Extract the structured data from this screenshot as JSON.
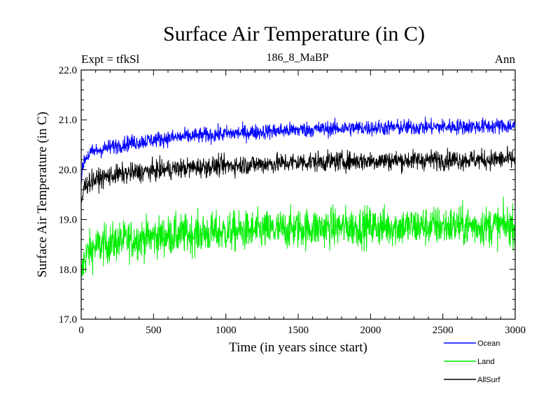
{
  "chart_data": {
    "type": "line",
    "title": "Surface Air Temperature (in C)",
    "subtitle_left": "Expt = tfkSl",
    "subtitle_center": "186_8_MaBP",
    "subtitle_right": "Ann",
    "xlabel": "Time (in years since start)",
    "ylabel": "Surface Air Temperature (in C)",
    "xlim": [
      0,
      3000
    ],
    "ylim": [
      17.0,
      22.0
    ],
    "x_ticks": [
      0,
      500,
      1000,
      1500,
      2000,
      2500,
      3000
    ],
    "x_tick_labels": [
      "0",
      "500",
      "1000",
      "1500",
      "2000",
      "2500",
      "3000"
    ],
    "y_ticks": [
      17.0,
      18.0,
      19.0,
      20.0,
      21.0,
      22.0
    ],
    "y_tick_labels": [
      "17.0",
      "18.0",
      "19.0",
      "20.0",
      "21.0",
      "22.0"
    ],
    "grid": false,
    "legend_position": "bottom-right",
    "series": [
      {
        "name": "Ocean",
        "color": "#0000ff",
        "x": [
          0,
          20,
          50,
          100,
          200,
          300,
          500,
          700,
          1000,
          1300,
          1500,
          1800,
          2000,
          2300,
          2500,
          2800,
          3000
        ],
        "values": [
          19.8,
          20.2,
          20.3,
          20.38,
          20.45,
          20.52,
          20.6,
          20.66,
          20.72,
          20.77,
          20.8,
          20.83,
          20.84,
          20.85,
          20.86,
          20.87,
          20.88
        ],
        "noise": 0.08
      },
      {
        "name": "Land",
        "color": "#00ee00",
        "x": [
          0,
          20,
          50,
          100,
          200,
          300,
          500,
          700,
          1000,
          1300,
          1500,
          1800,
          2000,
          2300,
          2500,
          2800,
          3000
        ],
        "values": [
          17.8,
          18.2,
          18.35,
          18.45,
          18.52,
          18.58,
          18.65,
          18.7,
          18.75,
          18.78,
          18.82,
          18.85,
          18.86,
          18.86,
          18.87,
          18.87,
          18.88
        ],
        "noise": 0.2
      },
      {
        "name": "AllSurf",
        "color": "#000000",
        "x": [
          0,
          20,
          50,
          100,
          200,
          300,
          500,
          700,
          1000,
          1300,
          1500,
          1800,
          2000,
          2300,
          2500,
          2800,
          3000
        ],
        "values": [
          19.3,
          19.65,
          19.75,
          19.8,
          19.88,
          19.92,
          19.98,
          20.03,
          20.08,
          20.12,
          20.15,
          20.17,
          20.18,
          20.19,
          20.2,
          20.2,
          20.21
        ],
        "noise": 0.1
      }
    ]
  }
}
